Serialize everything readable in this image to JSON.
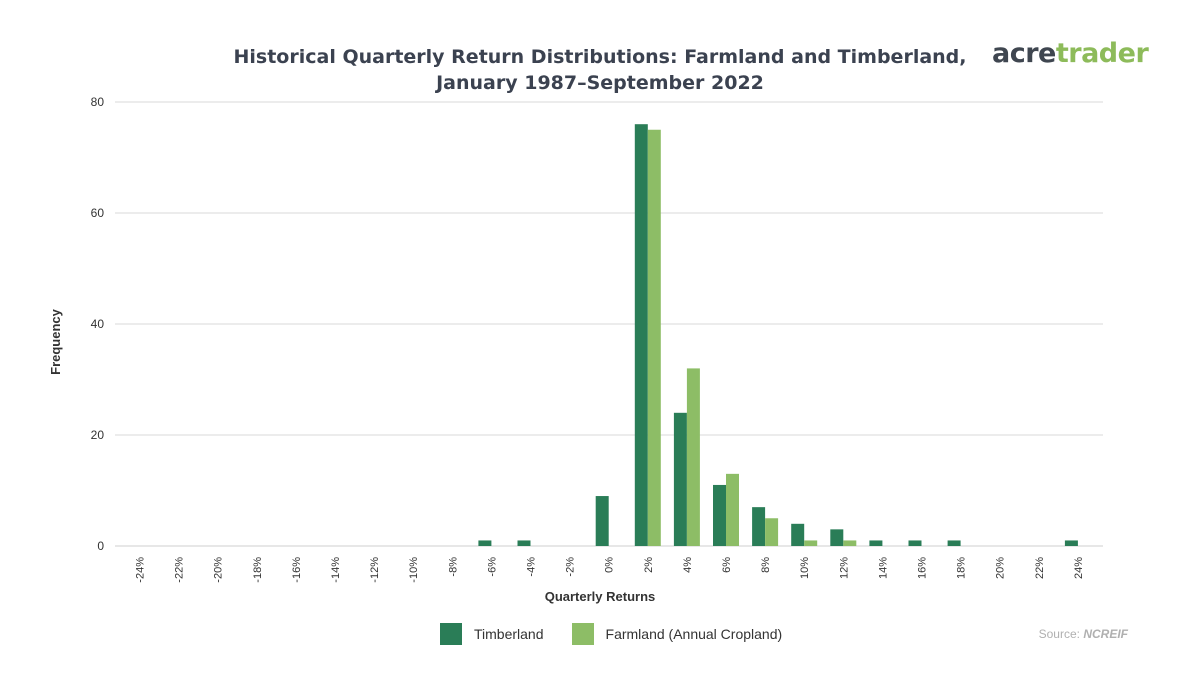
{
  "title_lines": [
    "Historical Quarterly Return Distributions: Farmland and Timberland,",
    "January 1987–September 2022"
  ],
  "logo": {
    "part1": "acre",
    "part2": "trader"
  },
  "source": {
    "prefix": "Source: ",
    "name": "NCREIF"
  },
  "colors": {
    "timberland": "#2a7d57",
    "farmland": "#8dbd66",
    "grid": "#d9d9d9",
    "text": "#333333"
  },
  "chart_data": {
    "type": "bar",
    "xlabel": "Quarterly Returns",
    "ylabel": "Frequency",
    "ylim": [
      0,
      80
    ],
    "yticks": [
      0,
      20,
      40,
      60,
      80
    ],
    "grid": true,
    "legend_position": "bottom",
    "categories": [
      "-24%",
      "-22%",
      "-20%",
      "-18%",
      "-16%",
      "-14%",
      "-12%",
      "-10%",
      "-8%",
      "-6%",
      "-4%",
      "-2%",
      "0%",
      "2%",
      "4%",
      "6%",
      "8%",
      "10%",
      "12%",
      "14%",
      "16%",
      "18%",
      "20%",
      "22%",
      "24%"
    ],
    "series": [
      {
        "name": "Timberland",
        "color": "#2a7d57",
        "values": [
          0,
          0,
          0,
          0,
          0,
          0,
          0,
          0,
          0,
          1,
          1,
          0,
          9,
          76,
          24,
          11,
          7,
          4,
          3,
          1,
          1,
          1,
          0,
          0,
          1
        ]
      },
      {
        "name": "Farmland (Annual Cropland)",
        "color": "#8dbd66",
        "values": [
          0,
          0,
          0,
          0,
          0,
          0,
          0,
          0,
          0,
          0,
          0,
          0,
          0,
          75,
          32,
          13,
          5,
          1,
          1,
          0,
          0,
          0,
          0,
          0,
          0
        ]
      }
    ]
  }
}
